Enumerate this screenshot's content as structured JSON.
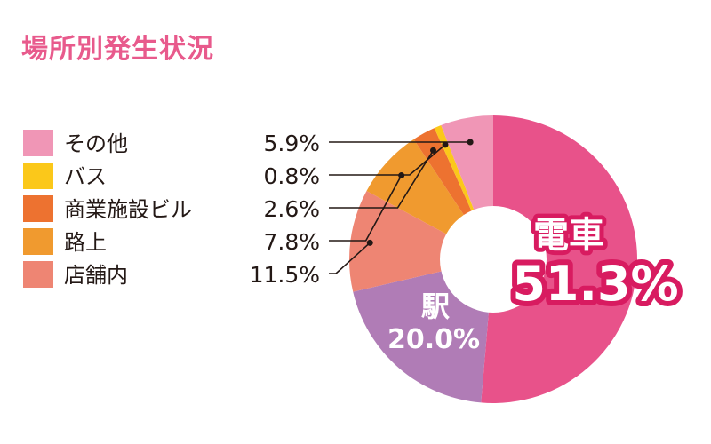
{
  "chart_data": {
    "type": "donut",
    "title": "場所別発生状況",
    "categories": [
      "電車",
      "駅",
      "店舗内",
      "路上",
      "商業施設ビル",
      "バス",
      "その他"
    ],
    "values": [
      51.3,
      20.0,
      11.5,
      7.8,
      2.6,
      0.8,
      5.9
    ],
    "value_labels": [
      "51.3%",
      "20.0%",
      "11.5%",
      "7.8%",
      "2.6%",
      "0.8%",
      "5.9%"
    ],
    "colors": [
      "#e8528a",
      "#b07cb6",
      "#ee8573",
      "#f09a2f",
      "#ed7230",
      "#fbc81a",
      "#f096b6"
    ],
    "legend": [
      {
        "label": "その他",
        "value": "5.9%",
        "color": "#f096b6"
      },
      {
        "label": "バス",
        "value": "0.8%",
        "color": "#fbc81a"
      },
      {
        "label": "商業施設ビル",
        "value": "2.6%",
        "color": "#ed7230"
      },
      {
        "label": "路上",
        "value": "7.8%",
        "color": "#f09a2f"
      },
      {
        "label": "店舗内",
        "value": "11.5%",
        "color": "#ee8573"
      }
    ],
    "inline_labels": [
      {
        "name": "電車",
        "value": "51.3%"
      },
      {
        "name": "駅",
        "value": "20.0%"
      }
    ]
  }
}
